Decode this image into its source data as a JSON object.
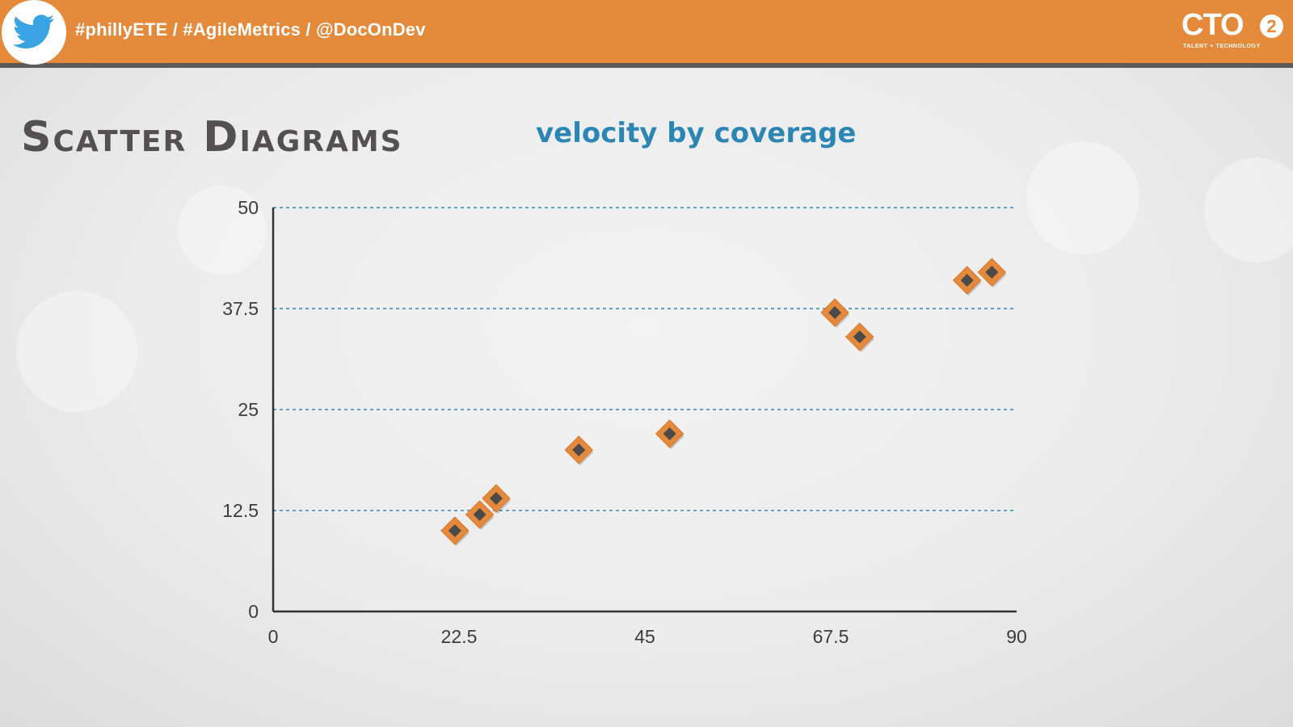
{
  "header": {
    "hashtags": "#phillyETE / #AgileMetrics / @DocOnDev",
    "twitter_icon": "twitter-bird-icon",
    "brand": {
      "name": "CTO",
      "badge": "2",
      "tagline": "TALENT + TECHNOLOGY"
    }
  },
  "slide": {
    "title": "Scatter Diagrams",
    "subtitle": "velocity by coverage"
  },
  "colors": {
    "header_bg": "#e5893b",
    "header_border": "#5e5a5a",
    "title": "#545050",
    "subtitle": "#2b86b6",
    "gridline": "#2b86b6",
    "marker_outer": "#e5893b",
    "marker_inner": "#4a4a4a",
    "axis": "#333333"
  },
  "chart_data": {
    "type": "scatter",
    "title": "",
    "xlabel": "",
    "ylabel": "",
    "xlim": [
      0,
      90
    ],
    "ylim": [
      0,
      50
    ],
    "x_ticks": [
      "0",
      "22.5",
      "45",
      "67.5",
      "90"
    ],
    "y_ticks": [
      "0",
      "12.5",
      "25",
      "37.5",
      "50"
    ],
    "grid": "horizontal dashed",
    "marker": "diamond",
    "series": [
      {
        "x": [
          22,
          25,
          27,
          37,
          48,
          68,
          71,
          84,
          87
        ],
        "y": [
          10,
          12,
          14,
          20,
          22,
          37,
          34,
          41,
          42
        ]
      }
    ]
  }
}
